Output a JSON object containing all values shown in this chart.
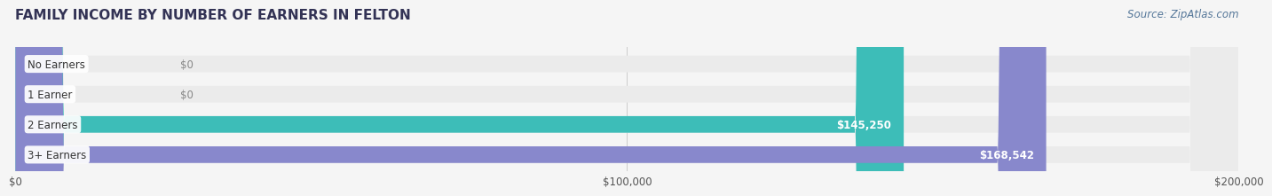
{
  "title": "FAMILY INCOME BY NUMBER OF EARNERS IN FELTON",
  "source": "Source: ZipAtlas.com",
  "categories": [
    "No Earners",
    "1 Earner",
    "2 Earners",
    "3+ Earners"
  ],
  "values": [
    0,
    0,
    145250,
    168542
  ],
  "bar_colors": [
    "#a8c4e0",
    "#c4a8c8",
    "#3dbdb8",
    "#8888cc"
  ],
  "bar_bg_color": "#ebebeb",
  "label_colors": [
    "#666688",
    "#666688",
    "#ffffff",
    "#ffffff"
  ],
  "xlim": [
    0,
    200000
  ],
  "xticks": [
    0,
    100000,
    200000
  ],
  "xtick_labels": [
    "$0",
    "$100,000",
    "$200,000"
  ],
  "title_fontsize": 11,
  "source_fontsize": 8.5,
  "bar_height": 0.55,
  "bg_color": "#f5f5f5",
  "fig_width": 14.06,
  "fig_height": 2.33
}
